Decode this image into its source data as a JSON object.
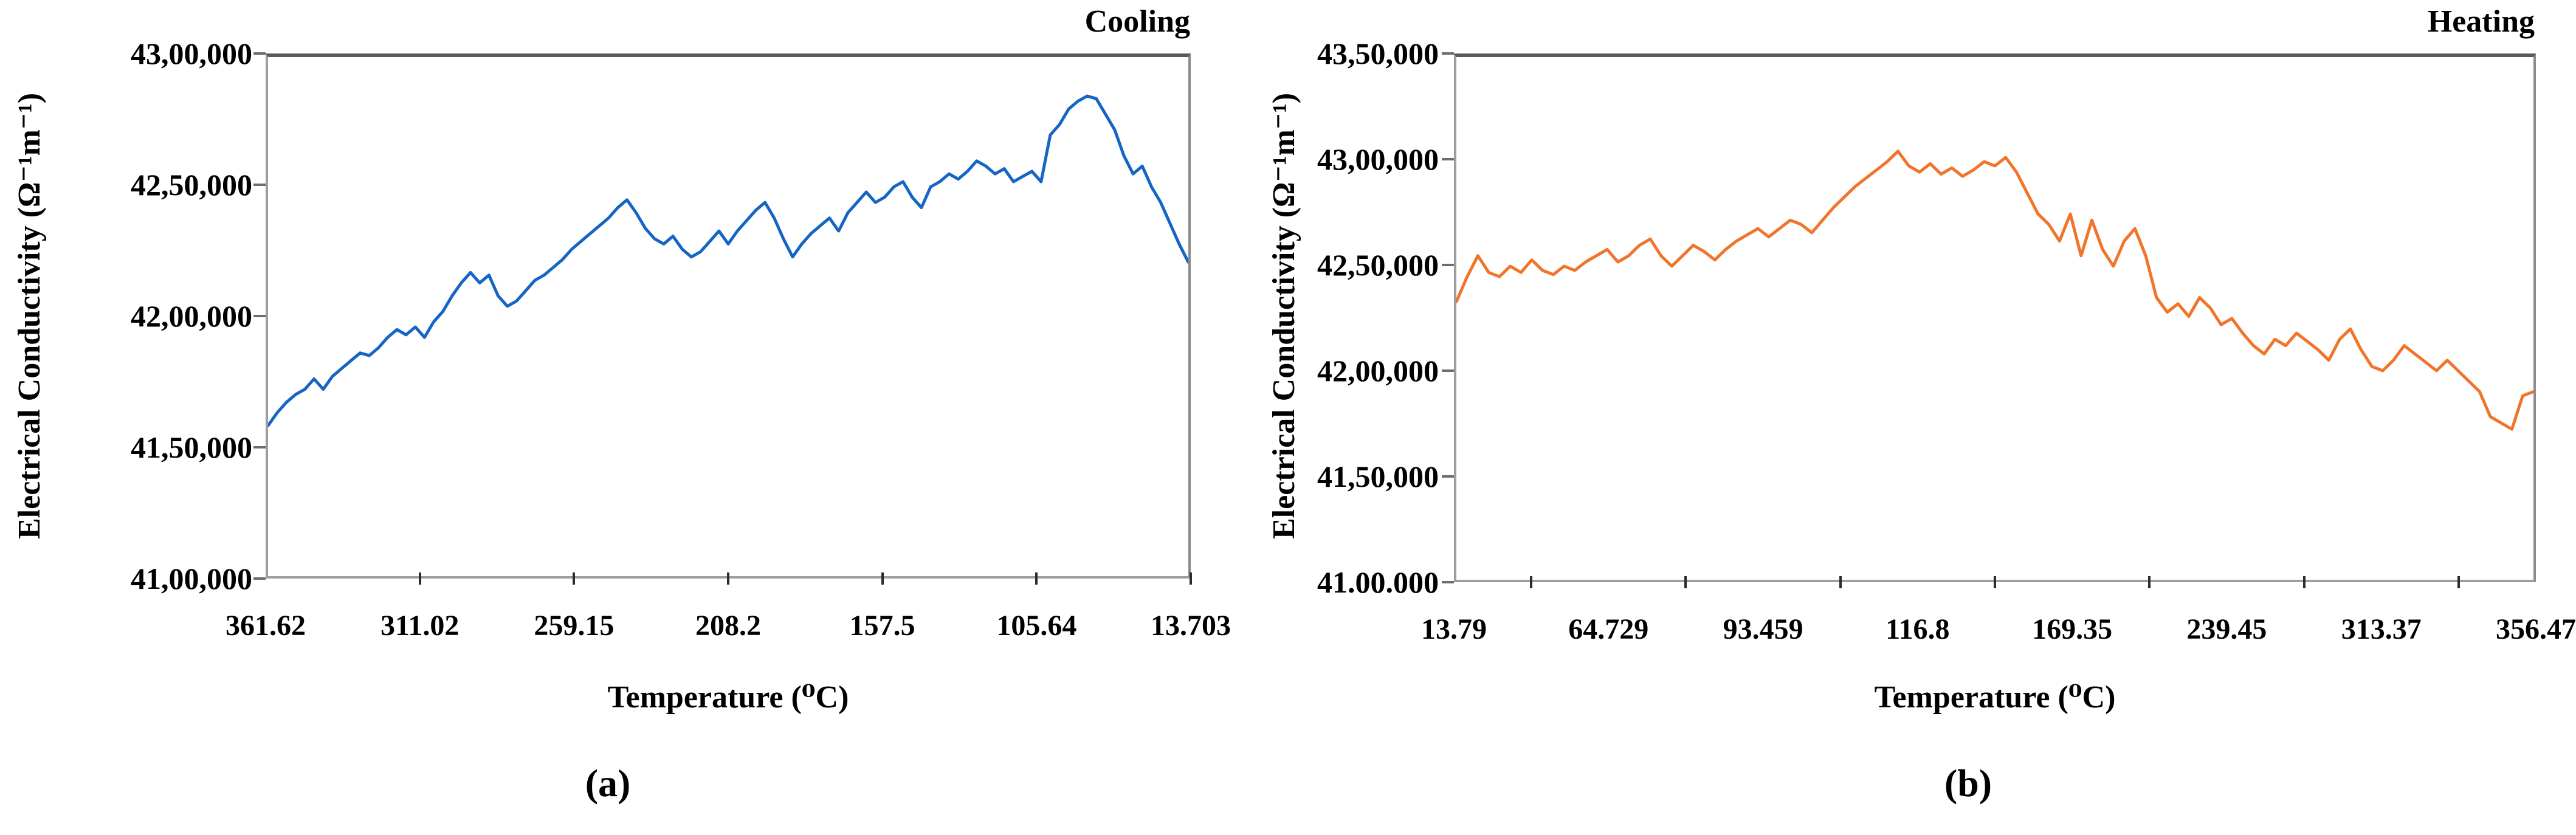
{
  "figure": {
    "panels": [
      {
        "id": "a",
        "caption": "(a)",
        "corner_label": "Cooling",
        "series_color": "#1565c5",
        "y_axis": {
          "title": "Electrical Conductivity (Ω⁻¹m⁻¹)",
          "tick_labels": [
            "43,00,000",
            "42,50,000",
            "42,00,000",
            "41,50,000",
            "41,00,000"
          ]
        },
        "x_axis": {
          "title": "Temperature (⁰C)",
          "tick_labels": [
            "361.62",
            "311.02",
            "259.15",
            "208.2",
            "157.5",
            "105.64",
            "13.703"
          ]
        }
      },
      {
        "id": "b",
        "caption": "(b)",
        "corner_label": "Heating",
        "series_color": "#f0752b",
        "y_axis": {
          "title": "Electrical Conductivity (Ω⁻¹m⁻¹)",
          "tick_labels": [
            "43,50,000",
            "43,00,000",
            "42,50,000",
            "42,00,000",
            "41,50,000",
            "41.00.000"
          ]
        },
        "x_axis": {
          "title": "Temperature (⁰C)",
          "tick_labels": [
            "13.79",
            "64.729",
            "93.459",
            "116.8",
            "169.35",
            "239.45",
            "313.37",
            "356.47"
          ]
        }
      }
    ]
  },
  "chart_data": [
    {
      "type": "line",
      "title": "Cooling",
      "xlabel": "Temperature (⁰C)",
      "ylabel": "Electrical Conductivity (Ω⁻¹m⁻¹)",
      "x_tick_labels": [
        "361.62",
        "311.02",
        "259.15",
        "208.2",
        "157.5",
        "105.64",
        "13.703"
      ],
      "x_direction": "temperature decreasing left to right",
      "ylim": [
        4100000,
        4300000
      ],
      "y_tick_step": 50000,
      "grid": false,
      "legend": "none",
      "x_tick_mode": "on-labels",
      "values": [
        4158000,
        4163000,
        4167000,
        4170000,
        4172000,
        4176000,
        4172000,
        4177000,
        4180000,
        4183000,
        4186000,
        4185000,
        4188000,
        4192000,
        4195000,
        4193000,
        4196000,
        4192000,
        4198000,
        4202000,
        4208000,
        4213000,
        4217000,
        4213000,
        4216000,
        4208000,
        4204000,
        4206000,
        4210000,
        4214000,
        4216000,
        4219000,
        4222000,
        4226000,
        4229000,
        4232000,
        4235000,
        4238000,
        4242000,
        4245000,
        4240000,
        4234000,
        4230000,
        4228000,
        4231000,
        4226000,
        4223000,
        4225000,
        4229000,
        4233000,
        4228000,
        4233000,
        4237000,
        4241000,
        4244000,
        4238000,
        4230000,
        4223000,
        4228000,
        4232000,
        4235000,
        4238000,
        4233000,
        4240000,
        4244000,
        4248000,
        4244000,
        4246000,
        4250000,
        4252000,
        4246000,
        4242000,
        4250000,
        4252000,
        4255000,
        4253000,
        4256000,
        4260000,
        4258000,
        4255000,
        4257000,
        4252000,
        4254000,
        4256000,
        4252000,
        4270000,
        4274000,
        4280000,
        4283000,
        4285000,
        4284000,
        4278000,
        4272000,
        4262000,
        4255000,
        4258000,
        4250000,
        4244000,
        4236000,
        4228000,
        4221000
      ]
    },
    {
      "type": "line",
      "title": "Heating",
      "xlabel": "Temperature (⁰C)",
      "ylabel": "Electrical Conductivity (Ω⁻¹m⁻¹)",
      "x_tick_labels": [
        "13.79",
        "64.729",
        "93.459",
        "116.8",
        "169.35",
        "239.45",
        "313.37",
        "356.47"
      ],
      "x_direction": "temperature increasing left to right",
      "ylim": [
        4100000,
        4350000
      ],
      "y_tick_step": 50000,
      "grid": false,
      "legend": "none",
      "x_tick_mode": "between-labels",
      "values": [
        4233000,
        4245000,
        4255000,
        4247000,
        4245000,
        4250000,
        4247000,
        4253000,
        4248000,
        4246000,
        4250000,
        4248000,
        4252000,
        4255000,
        4258000,
        4252000,
        4255000,
        4260000,
        4263000,
        4255000,
        4250000,
        4255000,
        4260000,
        4257000,
        4253000,
        4258000,
        4262000,
        4265000,
        4268000,
        4264000,
        4268000,
        4272000,
        4270000,
        4266000,
        4272000,
        4278000,
        4283000,
        4288000,
        4292000,
        4296000,
        4300000,
        4305000,
        4298000,
        4295000,
        4299000,
        4294000,
        4297000,
        4293000,
        4296000,
        4300000,
        4298000,
        4302000,
        4295000,
        4285000,
        4275000,
        4270000,
        4262000,
        4275000,
        4255000,
        4272000,
        4258000,
        4250000,
        4262000,
        4268000,
        4255000,
        4235000,
        4228000,
        4232000,
        4226000,
        4235000,
        4230000,
        4222000,
        4225000,
        4218000,
        4212000,
        4208000,
        4215000,
        4212000,
        4218000,
        4214000,
        4210000,
        4205000,
        4215000,
        4220000,
        4210000,
        4202000,
        4200000,
        4205000,
        4212000,
        4208000,
        4204000,
        4200000,
        4205000,
        4200000,
        4195000,
        4190000,
        4178000,
        4175000,
        4172000,
        4188000,
        4190000
      ]
    }
  ]
}
